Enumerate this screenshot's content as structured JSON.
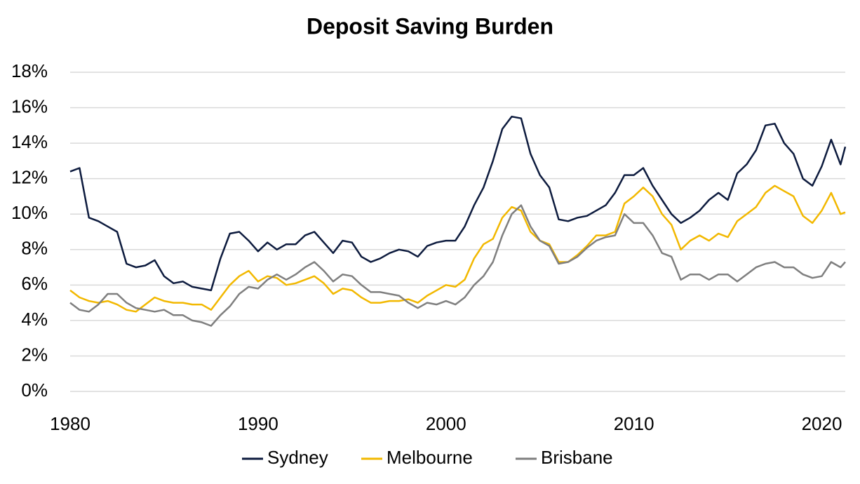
{
  "chart_data": {
    "type": "line",
    "title": "Deposit Saving Burden",
    "x": [
      1980,
      1980.5,
      1981,
      1981.5,
      1982,
      1982.5,
      1983,
      1983.5,
      1984,
      1984.5,
      1985,
      1985.5,
      1986,
      1986.5,
      1987,
      1987.5,
      1988,
      1988.5,
      1989,
      1989.5,
      1990,
      1990.5,
      1991,
      1991.5,
      1992,
      1992.5,
      1993,
      1993.5,
      1994,
      1994.5,
      1995,
      1995.5,
      1996,
      1996.5,
      1997,
      1997.5,
      1998,
      1998.5,
      1999,
      1999.5,
      2000,
      2000.5,
      2001,
      2001.5,
      2002,
      2002.5,
      2003,
      2003.5,
      2004,
      2004.5,
      2005,
      2005.5,
      2006,
      2006.5,
      2007,
      2007.5,
      2008,
      2008.5,
      2009,
      2009.5,
      2010,
      2010.5,
      2011,
      2011.5,
      2012,
      2012.5,
      2013,
      2013.5,
      2014,
      2014.5,
      2015,
      2015.5,
      2016,
      2016.5,
      2017,
      2017.5,
      2018,
      2018.5,
      2019,
      2019.5,
      2020,
      2020.5,
      2021,
      2021.25
    ],
    "series": [
      {
        "name": "Sydney",
        "color": "#0d1b3e",
        "values": [
          12.4,
          12.6,
          9.8,
          9.6,
          9.3,
          9.0,
          7.2,
          7.0,
          7.1,
          7.4,
          6.5,
          6.1,
          6.2,
          5.9,
          5.8,
          5.7,
          7.5,
          8.9,
          9.0,
          8.5,
          7.9,
          8.4,
          8.0,
          8.3,
          8.3,
          8.8,
          9.0,
          8.4,
          7.8,
          8.5,
          8.4,
          7.6,
          7.3,
          7.5,
          7.8,
          8.0,
          7.9,
          7.6,
          8.2,
          8.4,
          8.5,
          8.5,
          9.3,
          10.5,
          11.5,
          13.0,
          14.8,
          15.5,
          15.4,
          13.4,
          12.2,
          11.5,
          9.7,
          9.6,
          9.8,
          9.9,
          10.2,
          10.5,
          11.2,
          12.2,
          12.2,
          12.6,
          11.6,
          10.8,
          10.0,
          9.5,
          9.8,
          10.2,
          10.8,
          11.2,
          10.8,
          12.3,
          12.8,
          13.6,
          15.0,
          15.1,
          14.0,
          13.4,
          12.0,
          11.6,
          12.7,
          14.2,
          12.8,
          13.8
        ]
      },
      {
        "name": "Melbourne",
        "color": "#f2b800",
        "values": [
          5.7,
          5.3,
          5.1,
          5.0,
          5.1,
          4.9,
          4.6,
          4.5,
          4.9,
          5.3,
          5.1,
          5.0,
          5.0,
          4.9,
          4.9,
          4.6,
          5.3,
          6.0,
          6.5,
          6.8,
          6.2,
          6.5,
          6.4,
          6.0,
          6.1,
          6.3,
          6.5,
          6.1,
          5.5,
          5.8,
          5.7,
          5.3,
          5.0,
          5.0,
          5.1,
          5.1,
          5.2,
          5.0,
          5.4,
          5.7,
          6.0,
          5.9,
          6.3,
          7.5,
          8.3,
          8.6,
          9.8,
          10.4,
          10.2,
          9.0,
          8.5,
          8.3,
          7.3,
          7.3,
          7.7,
          8.2,
          8.8,
          8.8,
          9.0,
          10.6,
          11.0,
          11.5,
          11.0,
          10.0,
          9.4,
          8.0,
          8.5,
          8.8,
          8.5,
          8.9,
          8.7,
          9.6,
          10.0,
          10.4,
          11.2,
          11.6,
          11.3,
          11.0,
          9.9,
          9.5,
          10.2,
          11.2,
          10.0,
          10.1
        ]
      },
      {
        "name": "Brisbane",
        "color": "#7f7f7f",
        "values": [
          5.0,
          4.6,
          4.5,
          4.9,
          5.5,
          5.5,
          5.0,
          4.7,
          4.6,
          4.5,
          4.6,
          4.3,
          4.3,
          4.0,
          3.9,
          3.7,
          4.3,
          4.8,
          5.5,
          5.9,
          5.8,
          6.3,
          6.6,
          6.3,
          6.6,
          7.0,
          7.3,
          6.8,
          6.2,
          6.6,
          6.5,
          6.0,
          5.6,
          5.6,
          5.5,
          5.4,
          5.0,
          4.7,
          5.0,
          4.9,
          5.1,
          4.9,
          5.3,
          6.0,
          6.5,
          7.3,
          8.8,
          10.0,
          10.5,
          9.3,
          8.5,
          8.2,
          7.2,
          7.3,
          7.6,
          8.1,
          8.5,
          8.7,
          8.8,
          10.0,
          9.5,
          9.5,
          8.8,
          7.8,
          7.6,
          6.3,
          6.6,
          6.6,
          6.3,
          6.6,
          6.6,
          6.2,
          6.6,
          7.0,
          7.2,
          7.3,
          7.0,
          7.0,
          6.6,
          6.4,
          6.5,
          7.3,
          7.0,
          7.3
        ]
      }
    ],
    "xlim": [
      1980,
      2021.25
    ],
    "xticks": [
      1980,
      1990,
      2000,
      2010,
      2020
    ],
    "ylim": [
      0,
      18
    ],
    "yticks": [
      {
        "value": 0,
        "label": "0%"
      },
      {
        "value": 2,
        "label": "2%"
      },
      {
        "value": 4,
        "label": "4%"
      },
      {
        "value": 6,
        "label": "6%"
      },
      {
        "value": 8,
        "label": "8%"
      },
      {
        "value": 10,
        "label": "10%"
      },
      {
        "value": 12,
        "label": "12%"
      },
      {
        "value": 14,
        "label": "14%"
      },
      {
        "value": 16,
        "label": "16%"
      },
      {
        "value": 18,
        "label": "18%"
      }
    ],
    "grid": true,
    "legend": "bottom"
  }
}
